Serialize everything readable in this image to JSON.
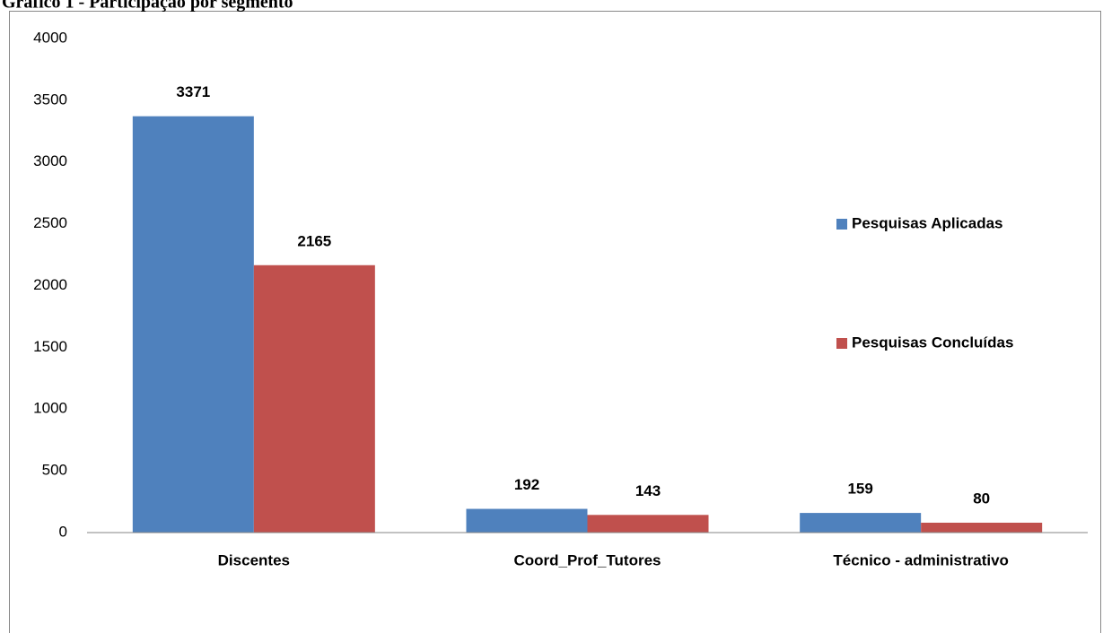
{
  "chart_data": {
    "type": "bar",
    "title": "Gráfico 1 - Participação por segmento",
    "categories": [
      "Discentes",
      "Coord_Prof_Tutores",
      "Técnico - administrativo"
    ],
    "series": [
      {
        "name": "Pesquisas Aplicadas",
        "color": "#4f81bd",
        "values": [
          3371,
          192,
          159
        ]
      },
      {
        "name": "Pesquisas Concluídas",
        "color": "#c0504d",
        "values": [
          2165,
          143,
          80
        ]
      }
    ],
    "ylim": [
      0,
      4000
    ],
    "yticks": [
      0,
      500,
      1000,
      1500,
      2000,
      2500,
      3000,
      3500,
      4000
    ],
    "grid": false,
    "legend": "right"
  }
}
